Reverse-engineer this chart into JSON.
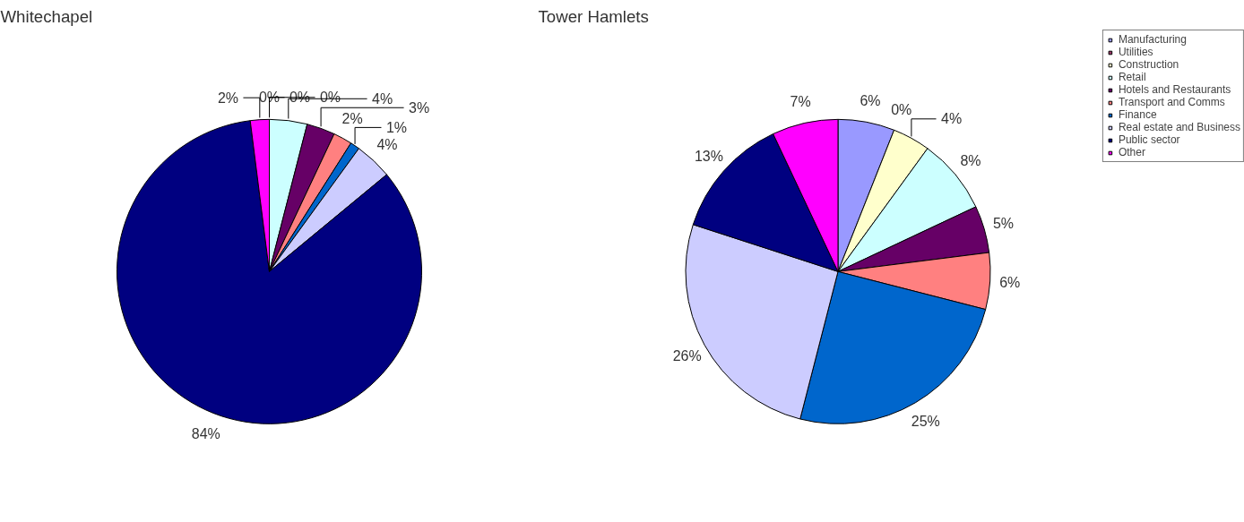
{
  "chart_data": [
    {
      "type": "pie",
      "title": "Whitechapel",
      "categories": [
        null,
        null,
        null,
        null,
        null,
        null,
        null,
        null,
        null,
        null
      ],
      "values": [
        0,
        0,
        0,
        4,
        3,
        2,
        1,
        4,
        84,
        2
      ],
      "value_labels": [
        "0%",
        "0%",
        "0%",
        "4%",
        "3%",
        "2%",
        "1%",
        "4%",
        "84%",
        "2%"
      ],
      "colors": [
        "#9999ff",
        "#993366",
        "#ffffcc",
        "#ccffff",
        "#660066",
        "#ff8080",
        "#0066cc",
        "#ccccff",
        "#000080",
        "#ff00ff"
      ]
    },
    {
      "type": "pie",
      "title": "Tower Hamlets",
      "categories": [
        "Manufacturing",
        "Utilities",
        "Construction",
        "Retail",
        "Hotels and Restaurants",
        "Transport and Comms",
        "Finance",
        "Real estate and Business",
        "Public sector",
        "Other"
      ],
      "values": [
        6,
        0,
        4,
        8,
        5,
        6,
        25,
        26,
        13,
        7
      ],
      "value_labels": [
        "6%",
        "0%",
        "4%",
        "8%",
        "5%",
        "6%",
        "25%",
        "26%",
        "13%",
        "7%"
      ],
      "colors": [
        "#9999ff",
        "#993366",
        "#ffffcc",
        "#ccffff",
        "#660066",
        "#ff8080",
        "#0066cc",
        "#ccccff",
        "#000080",
        "#ff00ff"
      ],
      "legend": "top right"
    }
  ]
}
